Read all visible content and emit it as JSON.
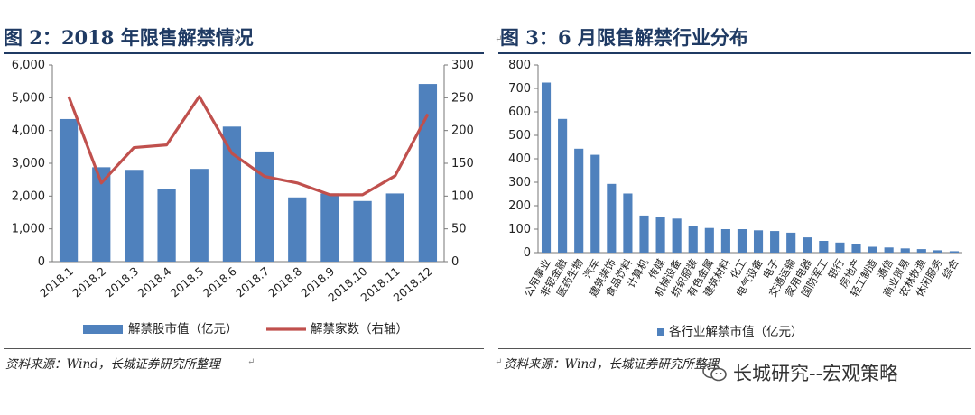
{
  "left": {
    "fig_label": "图 2：",
    "fig_title": "2018 年限售解禁情况",
    "source": "资料来源：Wind，长城证券研究所整理",
    "chart_data": {
      "type": "bar+line",
      "categories": [
        "2018.1",
        "2018.2",
        "2018.3",
        "2018.4",
        "2018.5",
        "2018.6",
        "2018.7",
        "2018.8",
        "2018.9",
        "2018.10",
        "2018.11",
        "2018.12"
      ],
      "series": [
        {
          "name": "解禁股市值（亿元）",
          "type": "bar",
          "axis": "left",
          "values": [
            4350,
            2880,
            2800,
            2220,
            2830,
            4120,
            3360,
            1960,
            2080,
            1850,
            2080,
            5420
          ]
        },
        {
          "name": "解禁家数（右轴）",
          "type": "line",
          "axis": "right",
          "values": [
            252,
            120,
            174,
            178,
            252,
            165,
            130,
            120,
            102,
            102,
            131,
            225
          ]
        }
      ],
      "ylim_left": [
        0,
        6000
      ],
      "yticks_left": [
        "0",
        "1,000",
        "2,000",
        "3,000",
        "4,000",
        "5,000",
        "6,000"
      ],
      "ylim_right": [
        0,
        300
      ],
      "yticks_right": [
        "0",
        "50",
        "100",
        "150",
        "200",
        "250",
        "300"
      ],
      "colors": {
        "bar": "#4f81bd",
        "line": "#c0504d"
      },
      "legend_position": "bottom"
    }
  },
  "right": {
    "fig_label": "图 3：",
    "fig_title": "6 月限售解禁行业分布",
    "source": "资料来源：Wind，长城证券研究所整理",
    "chart_data": {
      "type": "bar",
      "categories": [
        "公用事业",
        "非银金融",
        "医药生物",
        "汽车",
        "建筑装饰",
        "食品饮料",
        "计算机",
        "传媒",
        "机械设备",
        "纺织服装",
        "有色金属",
        "建筑材料",
        "化工",
        "电气设备",
        "电子",
        "交通运输",
        "家用电器",
        "国防军工",
        "银行",
        "房地产",
        "轻工制造",
        "通信",
        "商业贸易",
        "农林牧渔",
        "休闲服务",
        "综合"
      ],
      "series": [
        {
          "name": "各行业解禁市值（亿元）",
          "values": [
            725,
            570,
            443,
            417,
            293,
            252,
            158,
            153,
            145,
            115,
            105,
            100,
            100,
            95,
            92,
            85,
            65,
            50,
            43,
            38,
            25,
            22,
            18,
            15,
            10,
            6
          ]
        }
      ],
      "ylim": [
        0,
        800
      ],
      "yticks": [
        "0",
        "100",
        "200",
        "300",
        "400",
        "500",
        "600",
        "700",
        "800"
      ],
      "colors": {
        "bar": "#4f81bd"
      },
      "legend_position": "bottom"
    }
  },
  "watermark": "长城研究--宏观策略"
}
